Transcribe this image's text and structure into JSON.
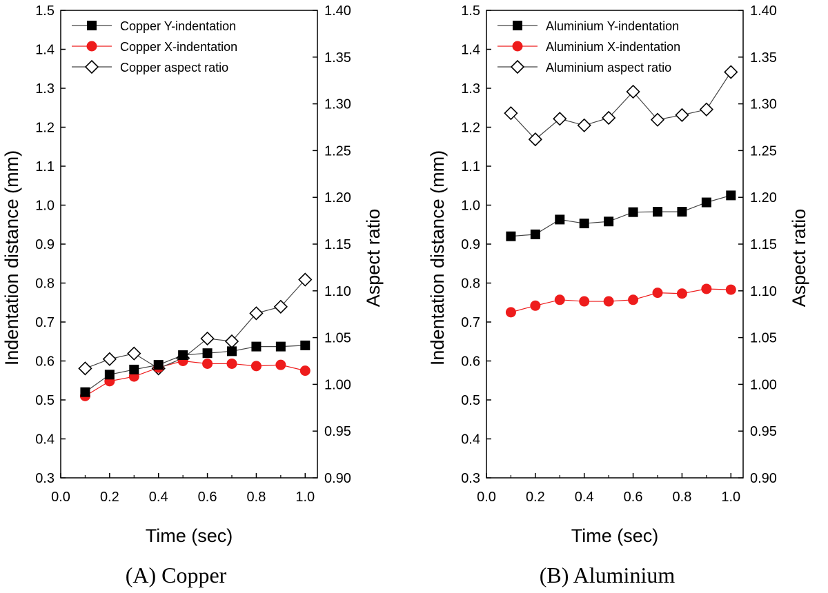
{
  "figure": {
    "colors": {
      "y_series": "#000000",
      "x_series": "#ee1c1c",
      "ratio_series": "#ffffff",
      "ratio_stroke": "#000000",
      "line": "#444444"
    }
  },
  "chart_data": [
    {
      "type": "line",
      "caption": "(A) Copper",
      "xlabel": "Time (sec)",
      "ylabel": "Indentation distance (mm)",
      "y2label": "Aspect ratio",
      "xlim": [
        0.0,
        1.05
      ],
      "ylim": [
        0.3,
        1.5
      ],
      "y2lim": [
        0.9,
        1.4
      ],
      "xticks": [
        "0.0",
        "0.2",
        "0.4",
        "0.6",
        "0.8",
        "1.0"
      ],
      "yticks": [
        "0.3",
        "0.4",
        "0.5",
        "0.6",
        "0.7",
        "0.8",
        "0.9",
        "1.0",
        "1.1",
        "1.2",
        "1.3",
        "1.4",
        "1.5"
      ],
      "y2ticks": [
        "0.90",
        "0.95",
        "1.00",
        "1.05",
        "1.10",
        "1.15",
        "1.20",
        "1.25",
        "1.30",
        "1.35",
        "1.40"
      ],
      "x": [
        0.1,
        0.2,
        0.3,
        0.4,
        0.5,
        0.6,
        0.7,
        0.8,
        0.9,
        1.0
      ],
      "legend_position": "top-left",
      "series": [
        {
          "name": "Copper Y-indentation",
          "axis": "left",
          "marker": "square",
          "values": [
            0.52,
            0.565,
            0.578,
            0.59,
            0.615,
            0.62,
            0.625,
            0.637,
            0.637,
            0.64
          ]
        },
        {
          "name": "Copper X-indentation",
          "axis": "left",
          "marker": "circle",
          "values": [
            0.51,
            0.548,
            0.56,
            0.583,
            0.6,
            0.593,
            0.593,
            0.587,
            0.59,
            0.575
          ]
        },
        {
          "name": "Copper aspect ratio",
          "axis": "right",
          "marker": "diamond",
          "values": [
            1.017,
            1.027,
            1.033,
            1.017,
            1.028,
            1.049,
            1.046,
            1.076,
            1.083,
            1.112
          ]
        }
      ]
    },
    {
      "type": "line",
      "caption": "(B) Aluminium",
      "xlabel": "Time (sec)",
      "ylabel": "Indentation distance (mm)",
      "y2label": "Aspect ratio",
      "xlim": [
        0.0,
        1.05
      ],
      "ylim": [
        0.3,
        1.5
      ],
      "y2lim": [
        0.9,
        1.4
      ],
      "xticks": [
        "0.0",
        "0.2",
        "0.4",
        "0.6",
        "0.8",
        "1.0"
      ],
      "yticks": [
        "0.3",
        "0.4",
        "0.5",
        "0.6",
        "0.7",
        "0.8",
        "0.9",
        "1.0",
        "1.1",
        "1.2",
        "1.3",
        "1.4",
        "1.5"
      ],
      "y2ticks": [
        "0.90",
        "0.95",
        "1.00",
        "1.05",
        "1.10",
        "1.15",
        "1.20",
        "1.25",
        "1.30",
        "1.35",
        "1.40"
      ],
      "x": [
        0.1,
        0.2,
        0.3,
        0.4,
        0.5,
        0.6,
        0.7,
        0.8,
        0.9,
        1.0
      ],
      "legend_position": "top-left",
      "series": [
        {
          "name": "Aluminium Y-indentation",
          "axis": "left",
          "marker": "square",
          "values": [
            0.92,
            0.925,
            0.963,
            0.953,
            0.958,
            0.982,
            0.983,
            0.983,
            1.007,
            1.025
          ]
        },
        {
          "name": "Aluminium X-indentation",
          "axis": "left",
          "marker": "circle",
          "values": [
            0.725,
            0.742,
            0.757,
            0.753,
            0.753,
            0.757,
            0.775,
            0.773,
            0.785,
            0.783
          ]
        },
        {
          "name": "Aluminium aspect ratio",
          "axis": "right",
          "marker": "diamond",
          "values": [
            1.29,
            1.262,
            1.284,
            1.277,
            1.285,
            1.313,
            1.283,
            1.288,
            1.294,
            1.334
          ]
        }
      ]
    }
  ]
}
